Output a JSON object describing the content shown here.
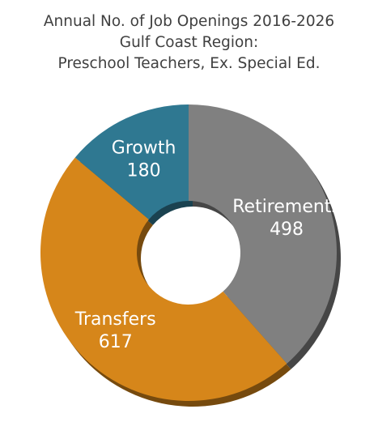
{
  "chart_data": {
    "type": "pie",
    "title": [
      "Annual No. of Job Openings 2016-2026",
      "Gulf Coast Region:",
      "Preschool Teachers, Ex. Special Ed."
    ],
    "categories": [
      "Retirements",
      "Transfers",
      "Growth"
    ],
    "values": [
      498,
      617,
      180
    ],
    "value_labels": [
      "498",
      "617",
      "180"
    ],
    "colors": [
      "#808080",
      "#d6861a",
      "#2f7891"
    ],
    "legend": "none"
  }
}
